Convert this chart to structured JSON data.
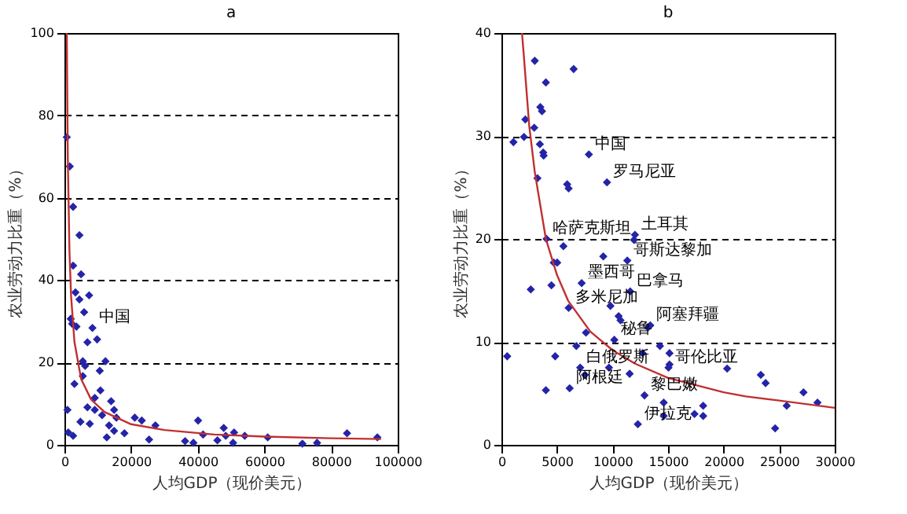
{
  "chart_data": [
    {
      "type": "scatter",
      "title": "a",
      "xlabel": "人均GDP（现价美元）",
      "ylabel": "农业劳动力比重（%）",
      "xlim": [
        0,
        100000
      ],
      "ylim": [
        0,
        100
      ],
      "xticks": [
        0,
        20000,
        40000,
        60000,
        80000,
        100000
      ],
      "yticks": [
        0,
        20,
        40,
        60,
        80,
        100
      ],
      "grid": "y",
      "marker": "diamond",
      "annotations": [
        {
          "text": "中国",
          "x": 8400,
          "y": 28.4
        }
      ],
      "series": [
        {
          "type": "scatter",
          "color": "#2424a8",
          "x": [
            700,
            1600,
            2600,
            4500,
            2600,
            5000,
            3300,
            7400,
            4500,
            5900,
            2300,
            3600,
            1900,
            8400,
            9800,
            6900,
            5500,
            12300,
            6200,
            3000,
            10600,
            5500,
            10800,
            9100,
            14000,
            6900,
            4800,
            7600,
            11300,
            14900,
            15600,
            13400,
            14900,
            18000,
            12700,
            21100,
            23200,
            27300,
            25400,
            36200,
            38700,
            40100,
            41600,
            45900,
            47800,
            48400,
            50900,
            54100,
            50600,
            61000,
            71400,
            75800,
            84800,
            93900,
            900,
            1150,
            2600,
            9100
          ],
          "values": [
            74.7,
            67.6,
            57.8,
            50.9,
            43.5,
            41.4,
            37,
            36.3,
            35.3,
            32.2,
            29.4,
            28.7,
            30.6,
            28.4,
            25.6,
            24.9,
            20.3,
            20.3,
            19.2,
            14.8,
            18,
            16.7,
            13.2,
            11.4,
            10.6,
            9.1,
            5.6,
            5.1,
            7.2,
            8.5,
            6.6,
            4.7,
            3.4,
            2.8,
            1.8,
            6.6,
            5.9,
            4.7,
            1.3,
            0.9,
            0.5,
            5.9,
            2.5,
            1.1,
            4.1,
            2.2,
            3,
            2.2,
            0.5,
            1.8,
            0.3,
            0.5,
            2.8,
            1.8,
            8.5,
            3,
            2.2,
            8.5
          ]
        },
        {
          "type": "line",
          "marker": "none",
          "line_style": "solid",
          "color": "#c03030",
          "x": [
            700,
            1000,
            1500,
            2000,
            3000,
            5000,
            8000,
            12000,
            20000,
            30000,
            45000,
            60000,
            80000,
            95000
          ],
          "values": [
            100,
            70,
            47,
            36,
            25,
            16,
            11,
            8,
            5,
            3.6,
            2.5,
            2,
            1.6,
            1.4
          ]
        }
      ]
    },
    {
      "type": "scatter",
      "title": "b",
      "xlabel": "人均GDP（现价美元）",
      "ylabel": "农业劳动力比重（%）",
      "xlim": [
        0,
        30000
      ],
      "ylim": [
        0,
        40
      ],
      "xticks": [
        0,
        5000,
        10000,
        15000,
        20000,
        25000,
        30000
      ],
      "yticks": [
        0,
        10,
        20,
        30,
        40
      ],
      "grid": "y",
      "marker": "diamond",
      "annotations": [
        {
          "text": "中国",
          "x": 7870,
          "y": 28.2
        },
        {
          "text": "罗马尼亚",
          "x": 9500,
          "y": 25.5
        },
        {
          "text": "土耳其",
          "x": 12020,
          "y": 20.4
        },
        {
          "text": "哈萨克斯坦",
          "x": 4060,
          "y": 20
        },
        {
          "text": "哥斯达黎加",
          "x": 11330,
          "y": 17.9
        },
        {
          "text": "墨西哥",
          "x": 7220,
          "y": 15.7
        },
        {
          "text": "巴拿马",
          "x": 11590,
          "y": 14.9
        },
        {
          "text": "多米尼加",
          "x": 6050,
          "y": 13.3
        },
        {
          "text": "阿塞拜疆",
          "x": 13400,
          "y": 11.6
        },
        {
          "text": "秘鲁",
          "x": 10160,
          "y": 10.2
        },
        {
          "text": "白俄罗斯",
          "x": 7090,
          "y": 7.5
        },
        {
          "text": "哥伦比亚",
          "x": 15040,
          "y": 7.5
        },
        {
          "text": "黎巴嫩",
          "x": 12880,
          "y": 4.8
        },
        {
          "text": "阿根廷",
          "x": 6140,
          "y": 5.5
        },
        {
          "text": "伊拉克",
          "x": 12280,
          "y": 2.0
        }
      ],
      "series": [
        {
          "type": "scatter",
          "color": "#2424a8",
          "x": [
            3000,
            6500,
            4000,
            3500,
            3650,
            2150,
            2950,
            2030,
            1080,
            3460,
            3760,
            3800,
            7870,
            3240,
            5920,
            6050,
            9500,
            12020,
            11930,
            4060,
            5580,
            9170,
            11330,
            4710,
            5020,
            2640,
            4500,
            7220,
            11590,
            9810,
            6050,
            10550,
            10720,
            13190,
            13400,
            7610,
            10160,
            6740,
            14270,
            15130,
            12710,
            520,
            4840,
            9680,
            7090,
            7520,
            11540,
            15130,
            15040,
            20320,
            23350,
            23780,
            27190,
            4000,
            6140,
            12880,
            14610,
            18160,
            25680,
            28450,
            14610,
            17380,
            18160,
            12280,
            24640
          ],
          "values": [
            37.3,
            36.5,
            35.2,
            32.8,
            32.4,
            31.6,
            30.8,
            29.9,
            29.4,
            29.2,
            28.4,
            28.1,
            28.2,
            25.9,
            25.3,
            24.9,
            25.5,
            20.4,
            19.9,
            20,
            19.3,
            18.3,
            17.9,
            17.7,
            17.7,
            15.1,
            15.5,
            15.7,
            14.9,
            13.5,
            13.3,
            12.5,
            12.1,
            11.4,
            11.6,
            10.9,
            10.2,
            9.6,
            9.6,
            8.9,
            8.9,
            8.6,
            8.6,
            7.5,
            7.5,
            6.8,
            6.9,
            7.8,
            7.5,
            7.4,
            6.8,
            6,
            5.1,
            5.3,
            5.5,
            4.8,
            4.1,
            3.8,
            3.8,
            4.1,
            2.8,
            3,
            2.8,
            2,
            1.6
          ]
        },
        {
          "type": "line",
          "marker": "none",
          "line_style": "solid",
          "color": "#c03030",
          "x": [
            1850,
            2000,
            2500,
            3000,
            4000,
            5000,
            6000,
            8000,
            10000,
            12000,
            15000,
            20000,
            22000,
            25000,
            30000
          ],
          "values": [
            40,
            38,
            31,
            26.5,
            20,
            16.5,
            14,
            11,
            9.2,
            7.9,
            6.5,
            5.1,
            4.7,
            4.3,
            3.6
          ]
        }
      ]
    }
  ]
}
